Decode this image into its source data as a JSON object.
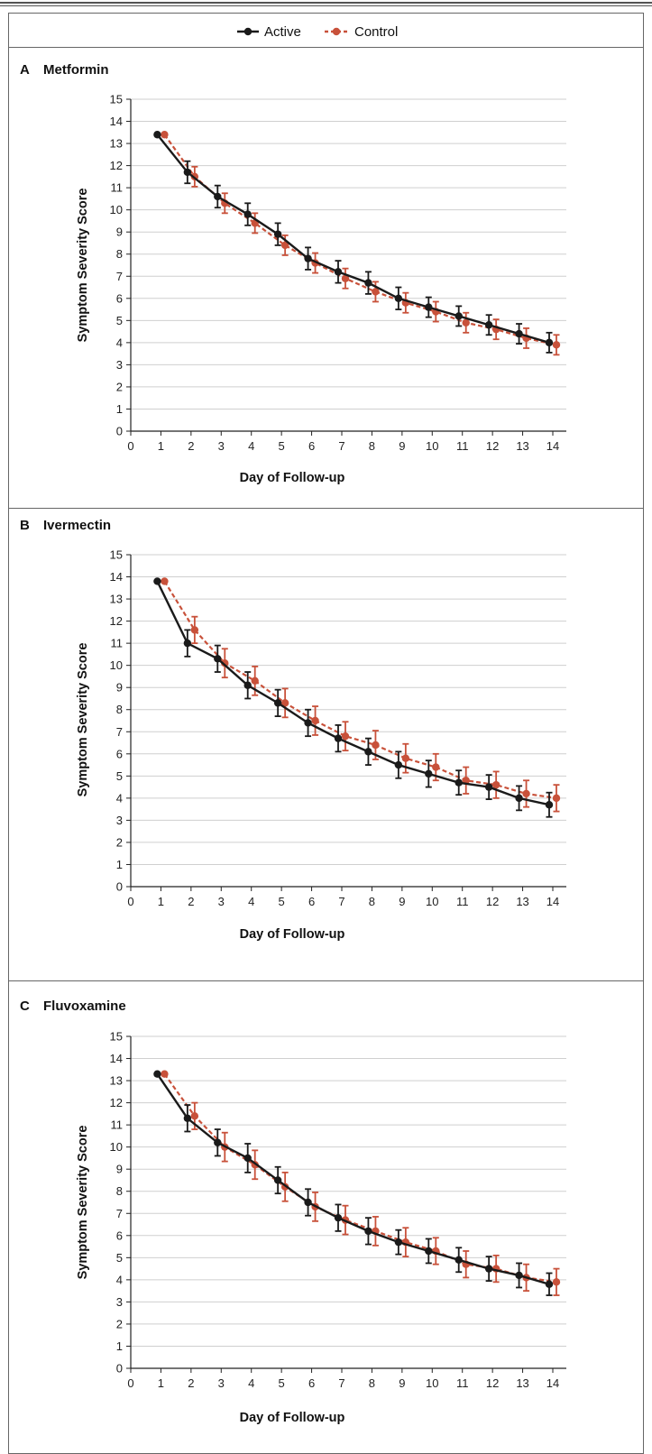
{
  "legend": {
    "active_label": "Active",
    "control_label": "Control",
    "active_color": "#1a1a1a",
    "control_color": "#c8513a"
  },
  "chart_data": [
    {
      "type": "line",
      "panel_letter": "A",
      "title": "Metformin",
      "xlabel": "Day of Follow-up",
      "ylabel": "Symptom Severity Score",
      "xlim": [
        0,
        14
      ],
      "ylim": [
        0,
        15
      ],
      "x_ticks": [
        0,
        1,
        2,
        3,
        4,
        5,
        6,
        7,
        8,
        9,
        10,
        11,
        12,
        13,
        14
      ],
      "y_ticks": [
        0,
        1,
        2,
        3,
        4,
        5,
        6,
        7,
        8,
        9,
        10,
        11,
        12,
        13,
        14,
        15
      ],
      "grid": true,
      "legend_position": "top-center",
      "x": [
        1,
        2,
        3,
        4,
        5,
        6,
        7,
        8,
        9,
        10,
        11,
        12,
        13,
        14
      ],
      "series": [
        {
          "name": "Active",
          "values": [
            13.4,
            11.7,
            10.6,
            9.8,
            8.9,
            7.8,
            7.2,
            6.7,
            6.0,
            5.6,
            5.2,
            4.8,
            4.4,
            4.0
          ],
          "error": [
            0,
            0.5,
            0.5,
            0.5,
            0.5,
            0.5,
            0.5,
            0.5,
            0.5,
            0.45,
            0.45,
            0.45,
            0.45,
            0.45
          ]
        },
        {
          "name": "Control",
          "values": [
            13.4,
            11.5,
            10.3,
            9.4,
            8.4,
            7.6,
            6.9,
            6.3,
            5.8,
            5.4,
            4.9,
            4.6,
            4.2,
            3.9
          ],
          "error": [
            0,
            0.45,
            0.45,
            0.45,
            0.45,
            0.45,
            0.45,
            0.45,
            0.45,
            0.45,
            0.45,
            0.45,
            0.45,
            0.45
          ]
        }
      ]
    },
    {
      "type": "line",
      "panel_letter": "B",
      "title": "Ivermectin",
      "xlabel": "Day of Follow-up",
      "ylabel": "Symptom Severity Score",
      "xlim": [
        0,
        14
      ],
      "ylim": [
        0,
        15
      ],
      "x_ticks": [
        0,
        1,
        2,
        3,
        4,
        5,
        6,
        7,
        8,
        9,
        10,
        11,
        12,
        13,
        14
      ],
      "y_ticks": [
        0,
        1,
        2,
        3,
        4,
        5,
        6,
        7,
        8,
        9,
        10,
        11,
        12,
        13,
        14,
        15
      ],
      "grid": true,
      "legend_position": "top-center",
      "x": [
        1,
        2,
        3,
        4,
        5,
        6,
        7,
        8,
        9,
        10,
        11,
        12,
        13,
        14
      ],
      "series": [
        {
          "name": "Active",
          "values": [
            13.8,
            11.0,
            10.3,
            9.1,
            8.3,
            7.4,
            6.7,
            6.1,
            5.5,
            5.1,
            4.7,
            4.5,
            4.0,
            3.7
          ],
          "error": [
            0,
            0.6,
            0.6,
            0.6,
            0.6,
            0.6,
            0.6,
            0.6,
            0.6,
            0.6,
            0.55,
            0.55,
            0.55,
            0.55
          ]
        },
        {
          "name": "Control",
          "values": [
            13.8,
            11.6,
            10.1,
            9.3,
            8.3,
            7.5,
            6.8,
            6.4,
            5.8,
            5.4,
            4.8,
            4.6,
            4.2,
            4.0
          ],
          "error": [
            0,
            0.6,
            0.65,
            0.65,
            0.65,
            0.65,
            0.65,
            0.65,
            0.65,
            0.6,
            0.6,
            0.6,
            0.6,
            0.6
          ]
        }
      ]
    },
    {
      "type": "line",
      "panel_letter": "C",
      "title": "Fluvoxamine",
      "xlabel": "Day of Follow-up",
      "ylabel": "Symptom Severity Score",
      "xlim": [
        0,
        14
      ],
      "ylim": [
        0,
        15
      ],
      "x_ticks": [
        0,
        1,
        2,
        3,
        4,
        5,
        6,
        7,
        8,
        9,
        10,
        11,
        12,
        13,
        14
      ],
      "y_ticks": [
        0,
        1,
        2,
        3,
        4,
        5,
        6,
        7,
        8,
        9,
        10,
        11,
        12,
        13,
        14,
        15
      ],
      "grid": true,
      "legend_position": "top-center",
      "x": [
        1,
        2,
        3,
        4,
        5,
        6,
        7,
        8,
        9,
        10,
        11,
        12,
        13,
        14
      ],
      "series": [
        {
          "name": "Active",
          "values": [
            13.3,
            11.3,
            10.2,
            9.5,
            8.5,
            7.5,
            6.8,
            6.2,
            5.7,
            5.3,
            4.9,
            4.5,
            4.2,
            3.8
          ],
          "error": [
            0,
            0.6,
            0.6,
            0.65,
            0.6,
            0.6,
            0.6,
            0.6,
            0.55,
            0.55,
            0.55,
            0.55,
            0.55,
            0.5
          ]
        },
        {
          "name": "Control",
          "values": [
            13.3,
            11.4,
            10.0,
            9.2,
            8.2,
            7.3,
            6.7,
            6.2,
            5.7,
            5.3,
            4.7,
            4.5,
            4.1,
            3.9
          ],
          "error": [
            0,
            0.6,
            0.65,
            0.65,
            0.65,
            0.65,
            0.65,
            0.65,
            0.65,
            0.6,
            0.6,
            0.6,
            0.6,
            0.6
          ]
        }
      ]
    }
  ]
}
